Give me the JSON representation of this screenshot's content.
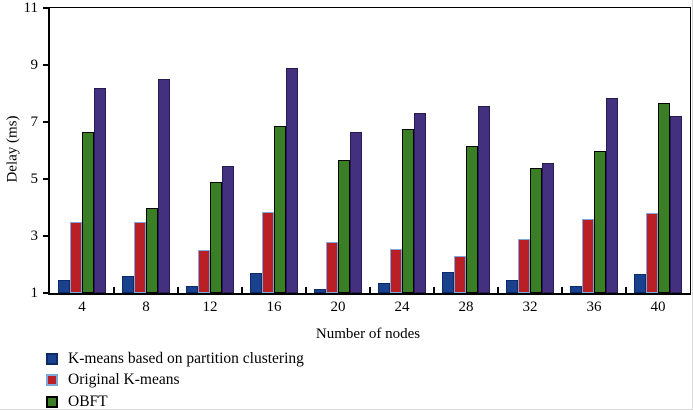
{
  "chart_data": {
    "type": "bar",
    "title": "",
    "xlabel": "Number of nodes",
    "ylabel": "Delay (ms)",
    "categories": [
      "4",
      "8",
      "12",
      "16",
      "20",
      "24",
      "28",
      "32",
      "36",
      "40"
    ],
    "ylim": [
      1,
      11
    ],
    "yticks": [
      1,
      3,
      5,
      7,
      9,
      11
    ],
    "grid": false,
    "legend_position": "bottom-left",
    "series": [
      {
        "name": "K-means based on partition clustering",
        "color": "#1a418e",
        "edge_color": "#0d2a66",
        "legend_visible": true,
        "values": [
          1.45,
          1.6,
          1.25,
          1.7,
          1.15,
          1.35,
          1.75,
          1.45,
          1.25,
          1.65
        ]
      },
      {
        "name": "Original K-means",
        "color": "#b91f24",
        "edge_color": "#7fa8db",
        "legend_visible": true,
        "values": [
          3.5,
          3.5,
          2.5,
          3.85,
          2.8,
          2.55,
          2.3,
          2.9,
          3.6,
          3.8
        ]
      },
      {
        "name": "OBFT",
        "color": "#3a7f26",
        "edge_color": "#000000",
        "legend_visible": true,
        "values": [
          6.65,
          4.0,
          4.9,
          6.85,
          5.65,
          6.75,
          6.15,
          5.4,
          6.0,
          7.65
        ]
      },
      {
        "name": "",
        "color": "#43307e",
        "edge_color": "#261c52",
        "legend_visible": false,
        "values": [
          8.2,
          8.5,
          5.45,
          8.9,
          6.65,
          7.3,
          7.55,
          5.55,
          7.85,
          7.2
        ]
      }
    ]
  }
}
